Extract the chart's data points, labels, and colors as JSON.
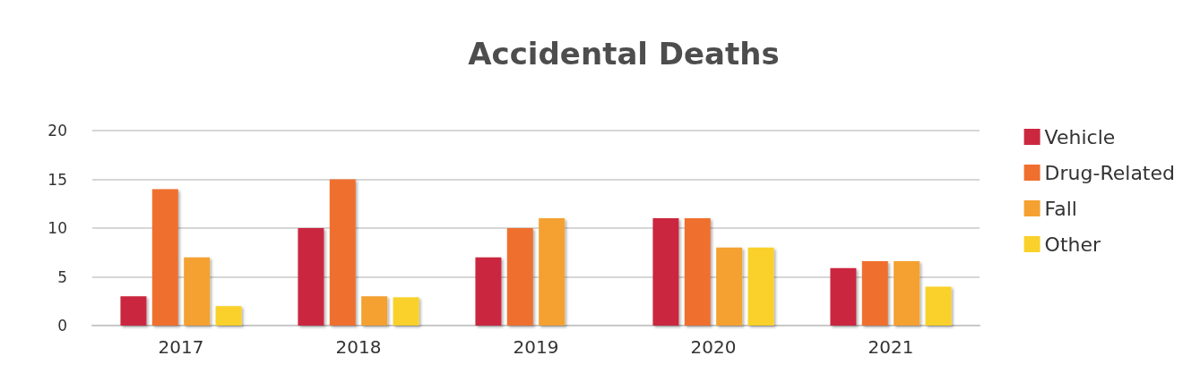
{
  "chart_data": {
    "type": "bar",
    "title": "Accidental Deaths",
    "categories": [
      "2017",
      "2018",
      "2019",
      "2020",
      "2021"
    ],
    "series": [
      {
        "name": "Vehicle",
        "color": "#cb283f",
        "values": [
          3,
          10,
          7,
          11,
          5.9
        ]
      },
      {
        "name": "Drug-Related",
        "color": "#ef6f2f",
        "values": [
          14,
          15,
          10,
          11,
          6.6
        ]
      },
      {
        "name": "Fall",
        "color": "#f4a131",
        "values": [
          7,
          3,
          11,
          8,
          6.6
        ]
      },
      {
        "name": "Other",
        "color": "#f9d12a",
        "values": [
          2,
          2.9,
          null,
          8,
          4
        ]
      }
    ],
    "ylim": [
      0,
      20
    ],
    "yticks": [
      0,
      5,
      10,
      15,
      20
    ],
    "grid": "y",
    "legend": "right"
  }
}
